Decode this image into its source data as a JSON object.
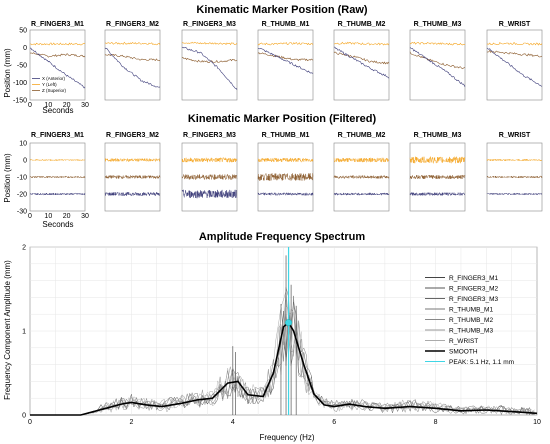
{
  "chart_data": [
    {
      "type": "line",
      "title": "Kinematic Marker Position (Raw)",
      "xlabel": "Seconds",
      "ylabel": "Position (mm)",
      "xlim": [
        0,
        30
      ],
      "ylim": [
        -150,
        50
      ],
      "x_ticks": [
        0,
        10,
        20,
        30
      ],
      "y_ticks": [
        50,
        0,
        -50,
        -100,
        -150
      ],
      "panels": [
        "R_FINGER3_M1",
        "R_FINGER3_M2",
        "R_FINGER3_M3",
        "R_THUMB_M1",
        "R_THUMB_M2",
        "R_THUMB_M3",
        "R_WRIST"
      ],
      "legend": [
        "X (Anterior)",
        "Y (Left)",
        "Z (Superior)"
      ],
      "colors": {
        "x": "#3d3d7a",
        "y": "#f5a623",
        "z": "#8a5a2b"
      },
      "series_approx": {
        "R_FINGER3_M1": {
          "x": [
            0,
            -40,
            -80,
            -115
          ],
          "y": [
            10,
            10,
            10,
            10
          ],
          "z": [
            -15,
            -25,
            -20,
            -25
          ]
        },
        "R_FINGER3_M2": {
          "x": [
            0,
            -55,
            -95,
            -115
          ],
          "y": [
            12,
            12,
            12,
            10
          ],
          "z": [
            -20,
            -25,
            -35,
            -35
          ]
        },
        "R_FINGER3_M3": {
          "x": [
            0,
            -15,
            -60,
            -120
          ],
          "y": [
            15,
            12,
            12,
            10
          ],
          "z": [
            -30,
            -40,
            -40,
            -35
          ]
        },
        "R_THUMB_M1": {
          "x": [
            0,
            -25,
            -50,
            -75
          ],
          "y": [
            10,
            10,
            12,
            10
          ],
          "z": [
            -15,
            -25,
            -35,
            -35
          ]
        },
        "R_THUMB_M2": {
          "x": [
            0,
            -30,
            -60,
            -85
          ],
          "y": [
            12,
            12,
            10,
            10
          ],
          "z": [
            -15,
            -25,
            -40,
            -45
          ]
        },
        "R_THUMB_M3": {
          "x": [
            0,
            -35,
            -70,
            -110
          ],
          "y": [
            12,
            12,
            10,
            10
          ],
          "z": [
            -15,
            -35,
            -50,
            -60
          ]
        },
        "R_WRIST": {
          "x": [
            0,
            -40,
            -80,
            -110
          ],
          "y": [
            10,
            12,
            10,
            10
          ],
          "z": [
            -10,
            -15,
            -20,
            -25
          ]
        }
      }
    },
    {
      "type": "line",
      "title": "Kinematic Marker Position (Filtered)",
      "xlabel": "Seconds",
      "ylabel": "Position (mm)",
      "xlim": [
        0,
        30
      ],
      "ylim": [
        -30,
        10
      ],
      "x_ticks": [
        0,
        10,
        20,
        30
      ],
      "y_ticks": [
        10,
        0,
        -10,
        -20,
        -30
      ],
      "panels": [
        "R_FINGER3_M1",
        "R_FINGER3_M2",
        "R_FINGER3_M3",
        "R_THUMB_M1",
        "R_THUMB_M2",
        "R_THUMB_M3",
        "R_WRIST"
      ],
      "offsets": {
        "y": 0,
        "z": -10,
        "x": -20
      },
      "noise_amplitude": {
        "R_FINGER3_M1": [
          0.4,
          0.5,
          0.6
        ],
        "R_FINGER3_M2": [
          0.9,
          1.0,
          1.1
        ],
        "R_FINGER3_M3": [
          1.4,
          1.6,
          2.5
        ],
        "R_THUMB_M1": [
          1.2,
          2.2,
          0.8
        ],
        "R_THUMB_M2": [
          1.3,
          0.9,
          0.7
        ],
        "R_THUMB_M3": [
          2.0,
          1.2,
          0.9
        ],
        "R_WRIST": [
          0.5,
          0.6,
          0.5
        ]
      }
    },
    {
      "type": "line",
      "title": "Amplitude Frequency Spectrum",
      "xlabel": "Frequency (Hz)",
      "ylabel": "Frequency Component Amplitude (mm)",
      "xlim": [
        0,
        10
      ],
      "ylim": [
        0,
        2
      ],
      "x_ticks": [
        0,
        2,
        4,
        6,
        8,
        10
      ],
      "y_ticks": [
        0,
        1,
        2
      ],
      "grid": true,
      "legend_position": "right",
      "legend": [
        "R_FINGER3_M1",
        "R_FINGER3_M2",
        "R_FINGER3_M3",
        "R_THUMB_M1",
        "R_THUMB_M2",
        "R_THUMB_M3",
        "R_WRIST",
        "SMOOTH",
        "PEAK: 5.1 Hz, 1.1 mm"
      ],
      "peak": {
        "x": 5.1,
        "y": 1.1
      },
      "smooth": {
        "x": [
          0,
          0.5,
          1.0,
          1.5,
          1.8,
          2.0,
          2.3,
          2.6,
          3.0,
          3.3,
          3.6,
          3.9,
          4.1,
          4.3,
          4.6,
          4.8,
          5.0,
          5.1,
          5.2,
          5.4,
          5.6,
          5.8,
          6.0,
          6.3,
          6.6,
          7.0,
          7.5,
          8.0,
          8.5,
          9.0,
          9.5,
          10.0
        ],
        "y": [
          0.0,
          0.0,
          0.0,
          0.08,
          0.13,
          0.15,
          0.12,
          0.1,
          0.14,
          0.18,
          0.2,
          0.38,
          0.4,
          0.24,
          0.22,
          0.5,
          1.05,
          1.1,
          1.0,
          0.6,
          0.25,
          0.12,
          0.1,
          0.13,
          0.1,
          0.08,
          0.1,
          0.08,
          0.05,
          0.06,
          0.04,
          0.02
        ]
      },
      "spikes": [
        {
          "x": 4.0,
          "y": 0.82
        },
        {
          "x": 4.05,
          "y": 0.75
        },
        {
          "x": 5.05,
          "y": 1.9
        },
        {
          "x": 5.1,
          "y": 1.95
        },
        {
          "x": 5.15,
          "y": 1.55
        },
        {
          "x": 5.25,
          "y": 1.3
        },
        {
          "x": 4.95,
          "y": 0.9
        }
      ],
      "colors": {
        "smooth": "#000000",
        "peak": "#3fd6e6",
        "raw": [
          "#444444",
          "#555555",
          "#666666",
          "#777777",
          "#888888",
          "#999999",
          "#aaaaaa"
        ]
      }
    }
  ]
}
